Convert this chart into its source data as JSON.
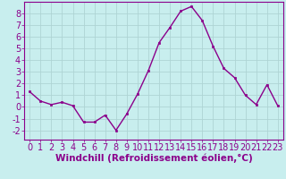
{
  "x": [
    0,
    1,
    2,
    3,
    4,
    5,
    6,
    7,
    8,
    9,
    10,
    11,
    12,
    13,
    14,
    15,
    16,
    17,
    18,
    19,
    20,
    21,
    22,
    23
  ],
  "y": [
    1.3,
    0.5,
    0.2,
    0.4,
    0.1,
    -1.3,
    -1.3,
    -0.7,
    -2.0,
    -0.6,
    1.1,
    3.1,
    5.5,
    6.8,
    8.2,
    8.6,
    7.4,
    5.2,
    3.3,
    2.5,
    1.0,
    0.2,
    1.9,
    0.1
  ],
  "line_color": "#8b008b",
  "marker": "s",
  "marker_size": 2.0,
  "bg_color": "#c8eeee",
  "grid_color": "#aed4d4",
  "xlabel": "Windchill (Refroidissement éolien,°C)",
  "xlabel_color": "#8b008b",
  "xlabel_fontsize": 7.5,
  "ylabel_ticks": [
    -2,
    -1,
    0,
    1,
    2,
    3,
    4,
    5,
    6,
    7,
    8
  ],
  "xlim": [
    -0.5,
    23.5
  ],
  "ylim": [
    -2.8,
    9.0
  ],
  "tick_color": "#8b008b",
  "tick_fontsize": 7.0,
  "line_width": 1.0
}
